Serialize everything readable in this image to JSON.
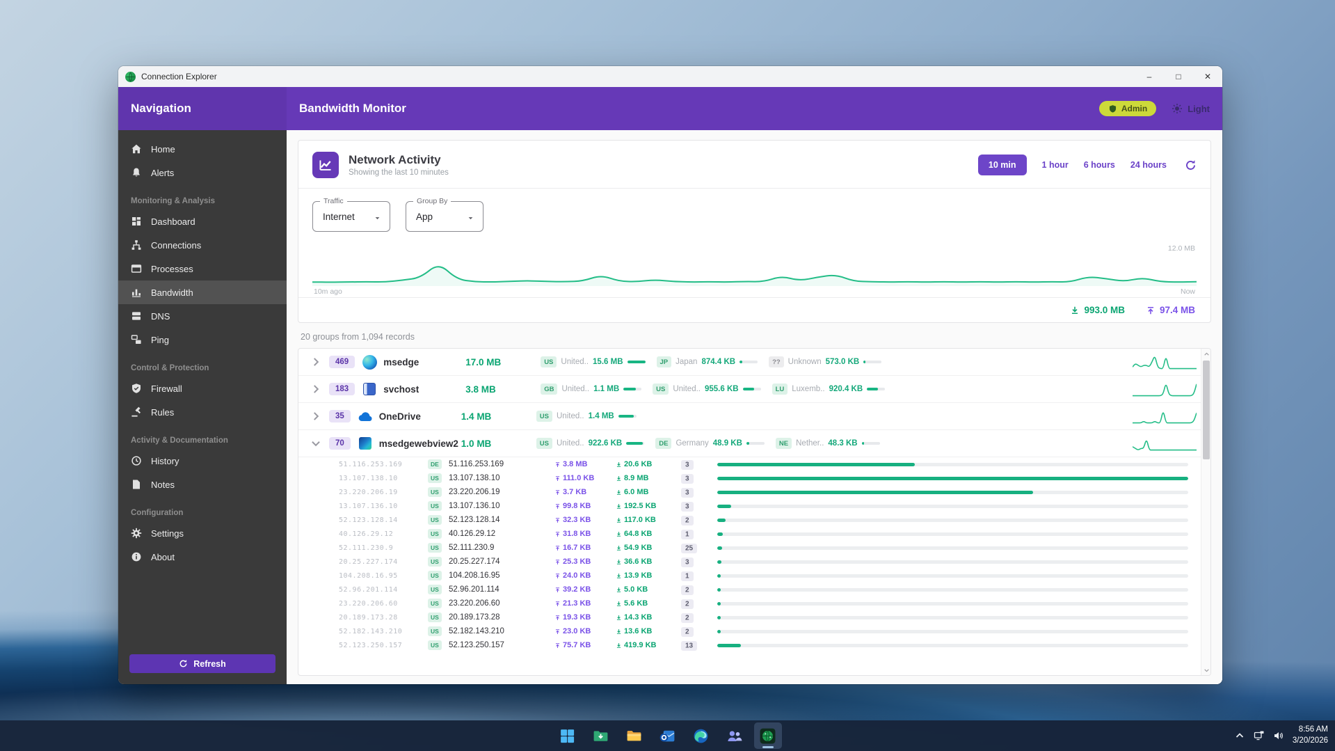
{
  "window": {
    "title": "Connection Explorer"
  },
  "header": {
    "nav_title": "Navigation",
    "title": "Bandwidth Monitor",
    "admin_label": "Admin",
    "theme_label": "Light"
  },
  "sidebar": {
    "sections": [
      {
        "header": "",
        "items": [
          {
            "icon": "home",
            "label": "Home"
          },
          {
            "icon": "bell",
            "label": "Alerts"
          }
        ]
      },
      {
        "header": "Monitoring & Analysis",
        "items": [
          {
            "icon": "dashboard",
            "label": "Dashboard"
          },
          {
            "icon": "connections",
            "label": "Connections"
          },
          {
            "icon": "processes",
            "label": "Processes"
          },
          {
            "icon": "bandwidth",
            "label": "Bandwidth",
            "active": true
          },
          {
            "icon": "dns",
            "label": "DNS"
          },
          {
            "icon": "ping",
            "label": "Ping"
          }
        ]
      },
      {
        "header": "Control & Protection",
        "items": [
          {
            "icon": "shield-check",
            "label": "Firewall"
          },
          {
            "icon": "gavel",
            "label": "Rules"
          }
        ]
      },
      {
        "header": "Activity & Documentation",
        "items": [
          {
            "icon": "history",
            "label": "History"
          },
          {
            "icon": "notes",
            "label": "Notes"
          }
        ]
      },
      {
        "header": "Configuration",
        "items": [
          {
            "icon": "gear",
            "label": "Settings"
          }
        ]
      },
      {
        "header": "",
        "items": [
          {
            "icon": "info",
            "label": "About"
          }
        ]
      }
    ],
    "refresh_label": "Refresh"
  },
  "activity": {
    "title": "Network Activity",
    "subtitle": "Showing the last 10 minutes",
    "ranges": [
      {
        "label": "10 min",
        "active": true
      },
      {
        "label": "1 hour",
        "active": false
      },
      {
        "label": "6 hours",
        "active": false
      },
      {
        "label": "24 hours",
        "active": false
      }
    ],
    "filters": [
      {
        "label": "Traffic",
        "value": "Internet"
      },
      {
        "label": "Group By",
        "value": "App"
      }
    ],
    "chart_data": {
      "type": "area",
      "unit": "MB",
      "ylim": [
        0,
        12
      ],
      "max_label": "12.0 MB",
      "start_label": "10m ago",
      "end_label": "Now",
      "values": [
        0.5,
        0.4,
        0.5,
        0.6,
        0.5,
        1.2,
        2.2,
        8.0,
        1.6,
        0.6,
        0.5,
        0.8,
        1.0,
        0.7,
        0.6,
        0.9,
        3.2,
        0.8,
        0.6,
        1.4,
        0.7,
        0.5,
        0.6,
        0.5,
        0.7,
        0.6,
        2.8,
        1.0,
        2.4,
        3.4,
        0.8,
        0.6,
        0.5,
        0.6,
        0.5,
        0.6,
        0.5,
        0.6,
        0.5,
        0.6,
        0.5,
        0.6,
        0.5,
        2.6,
        1.8,
        0.7,
        2.2,
        0.6,
        0.5,
        0.6
      ]
    },
    "totals": {
      "download": "993.0 MB",
      "upload": "97.4 MB"
    }
  },
  "table": {
    "summary": "20 groups from 1,094 records",
    "groups": [
      {
        "count": "469",
        "app": "msedge",
        "icon": "edge",
        "total": "17.0 MB",
        "expanded": false,
        "chips": [
          {
            "code": "US",
            "name": "United..",
            "value": "15.6 MB",
            "bar": 100
          },
          {
            "code": "JP",
            "name": "Japan",
            "value": "874.4 KB",
            "bar": 15
          },
          {
            "code": "??",
            "name": "Unknown",
            "value": "573.0 KB",
            "bar": 12
          }
        ],
        "spark": [
          2,
          4,
          3,
          2,
          3,
          3,
          2,
          5,
          9,
          2,
          1,
          1,
          9,
          1,
          1,
          1,
          1,
          1,
          1,
          1,
          1,
          1,
          1,
          1
        ]
      },
      {
        "count": "183",
        "app": "svchost",
        "icon": "svchost",
        "total": "3.8 MB",
        "expanded": false,
        "chips": [
          {
            "code": "GB",
            "name": "United..",
            "value": "1.1 MB",
            "bar": 70
          },
          {
            "code": "US",
            "name": "United..",
            "value": "955.6 KB",
            "bar": 62
          },
          {
            "code": "LU",
            "name": "Luxemb..",
            "value": "920.4 KB",
            "bar": 60
          }
        ],
        "spark": [
          1,
          1,
          1,
          1,
          1,
          1,
          1,
          1,
          1,
          1,
          1,
          2,
          9,
          2,
          1,
          1,
          1,
          1,
          1,
          1,
          1,
          1,
          2,
          8
        ]
      },
      {
        "count": "35",
        "app": "OneDrive",
        "icon": "onedrive",
        "total": "1.4 MB",
        "expanded": false,
        "chips": [
          {
            "code": "US",
            "name": "United..",
            "value": "1.4 MB",
            "bar": 85
          }
        ],
        "spark": [
          1,
          1,
          1,
          1,
          2,
          1,
          1,
          1,
          2,
          1,
          1,
          9,
          1,
          1,
          1,
          1,
          1,
          1,
          1,
          1,
          1,
          1,
          2,
          7
        ]
      },
      {
        "count": "70",
        "app": "msedgewebview2",
        "icon": "webview",
        "total": "1.0 MB",
        "expanded": true,
        "chips": [
          {
            "code": "US",
            "name": "United..",
            "value": "922.6 KB",
            "bar": 90
          },
          {
            "code": "DE",
            "name": "Germany",
            "value": "48.9 KB",
            "bar": 14
          },
          {
            "code": "NE",
            "name": "Nether..",
            "value": "48.3 KB",
            "bar": 13
          }
        ],
        "spark": [
          3,
          2,
          1,
          2,
          2,
          8,
          1,
          1,
          1,
          1,
          1,
          1,
          1,
          1,
          1,
          1,
          1,
          1,
          1,
          1,
          1,
          1,
          1,
          1
        ]
      }
    ],
    "details": [
      {
        "ip": "51.116.253.169",
        "code": "DE",
        "up": "3.8 MB",
        "down": "20.6 KB",
        "count": "3",
        "bar": 42
      },
      {
        "ip": "13.107.138.10",
        "code": "US",
        "up": "111.0 KB",
        "down": "8.9 MB",
        "count": "3",
        "bar": 100
      },
      {
        "ip": "23.220.206.19",
        "code": "US",
        "up": "3.7 KB",
        "down": "6.0 MB",
        "count": "3",
        "bar": 67
      },
      {
        "ip": "13.107.136.10",
        "code": "US",
        "up": "99.8 KB",
        "down": "192.5 KB",
        "count": "3",
        "bar": 3
      },
      {
        "ip": "52.123.128.14",
        "code": "US",
        "up": "32.3 KB",
        "down": "117.0 KB",
        "count": "2",
        "bar": 1.8
      },
      {
        "ip": "40.126.29.12",
        "code": "US",
        "up": "31.8 KB",
        "down": "64.8 KB",
        "count": "1",
        "bar": 1.2
      },
      {
        "ip": "52.111.230.9",
        "code": "US",
        "up": "16.7 KB",
        "down": "54.9 KB",
        "count": "25",
        "bar": 1
      },
      {
        "ip": "20.25.227.174",
        "code": "US",
        "up": "25.3 KB",
        "down": "36.6 KB",
        "count": "3",
        "bar": 0.9
      },
      {
        "ip": "104.208.16.95",
        "code": "US",
        "up": "24.0 KB",
        "down": "13.9 KB",
        "count": "1",
        "bar": 0.7
      },
      {
        "ip": "52.96.201.114",
        "code": "US",
        "up": "39.2 KB",
        "down": "5.0 KB",
        "count": "2",
        "bar": 0.7
      },
      {
        "ip": "23.220.206.60",
        "code": "US",
        "up": "21.3 KB",
        "down": "5.6 KB",
        "count": "2",
        "bar": 0.6
      },
      {
        "ip": "20.189.173.28",
        "code": "US",
        "up": "19.3 KB",
        "down": "14.3 KB",
        "count": "2",
        "bar": 0.6
      },
      {
        "ip": "52.182.143.210",
        "code": "US",
        "up": "23.0 KB",
        "down": "13.6 KB",
        "count": "2",
        "bar": 0.6
      },
      {
        "ip": "52.123.250.157",
        "code": "US",
        "up": "75.7 KB",
        "down": "419.9 KB",
        "count": "13",
        "bar": 5
      }
    ]
  },
  "taskbar": {
    "apps": [
      "start",
      "downloads",
      "explorer",
      "outlook",
      "edge",
      "teams",
      "connection-explorer"
    ],
    "active_app": "connection-explorer",
    "time": "8:56 AM",
    "date": "3/20/2026"
  },
  "colors": {
    "accent_purple": "#6639b7",
    "green": "#18b583",
    "green_text": "#0ba572",
    "upload_purple": "#7a52e8",
    "admin_badge": "#ccd93a",
    "sidebar_bg": "#3a3a3a"
  }
}
